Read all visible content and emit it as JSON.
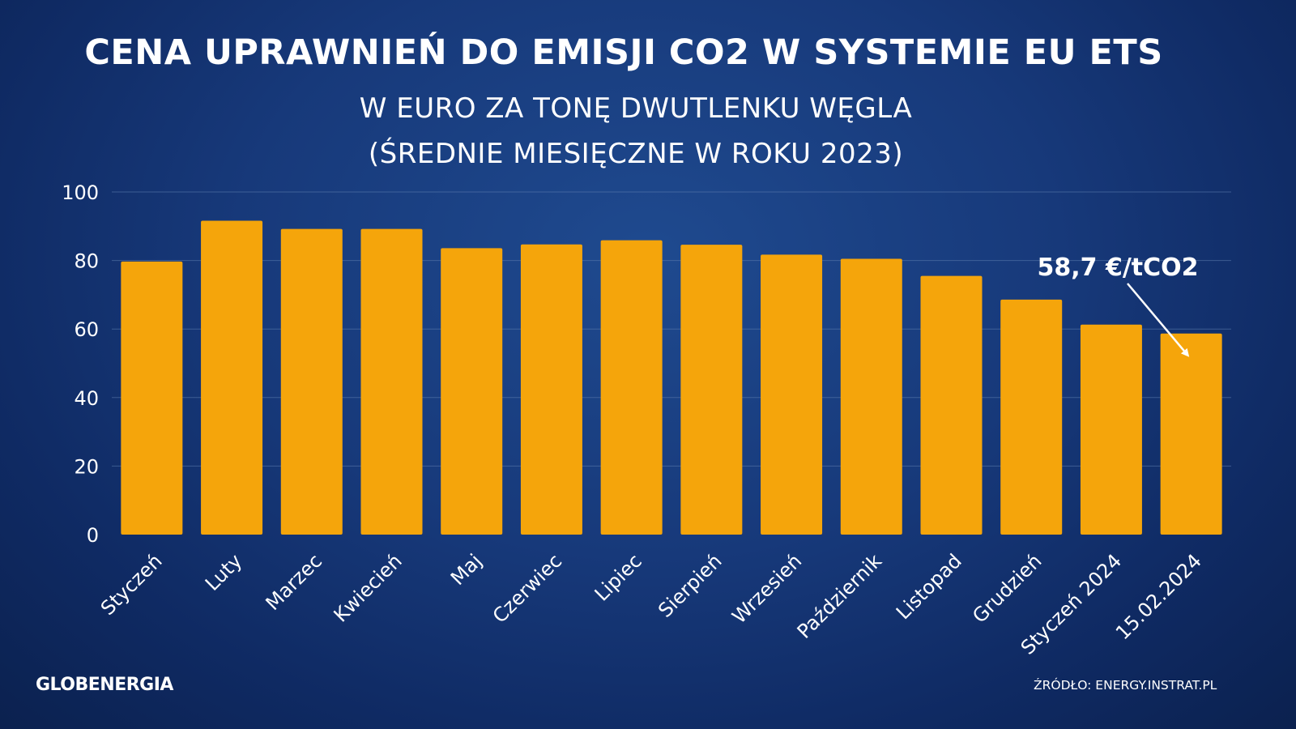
{
  "header": {
    "title": "CENA UPRAWNIEŃ DO EMISJI CO2 W SYSTEMIE EU ETS",
    "subtitle_line1": "W EURO ZA TONĘ DWUTLENKU WĘGLA",
    "subtitle_line2": "(ŚREDNIE MIESIĘCZNE W ROKU 2023)"
  },
  "footer": {
    "logo": "GLOBENERGIA",
    "source": "ŹRÓDŁO: ENERGY.INSTRAT.PL"
  },
  "colors": {
    "background": "#17397a",
    "bar": "#f5a50b",
    "text": "#ffffff",
    "gridline": "#5f7fb0"
  },
  "chart_data": {
    "type": "bar",
    "categories": [
      "Styczeń",
      "Luty",
      "Marzec",
      "Kwiecień",
      "Maj",
      "Czerwiec",
      "Lipiec",
      "Sierpień",
      "Wrzesień",
      "Październik",
      "Listopad",
      "Grudzień",
      "Styczeń 2024",
      "15.02.2024"
    ],
    "values": [
      79.7,
      91.6,
      89.2,
      89.2,
      83.6,
      84.7,
      85.9,
      84.6,
      81.7,
      80.5,
      75.5,
      68.6,
      61.3,
      58.7
    ],
    "yticks": [
      0,
      20,
      40,
      60,
      80,
      100
    ],
    "ylim": [
      0,
      100
    ],
    "grid": true,
    "annotation": {
      "text": "58,7 €/tCO2",
      "target_index": 13
    }
  }
}
